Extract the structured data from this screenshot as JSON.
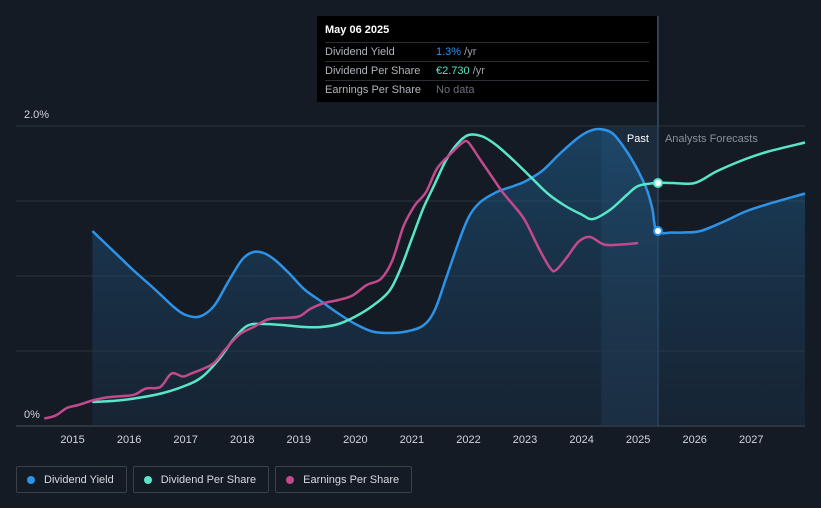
{
  "chart_data": {
    "type": "line",
    "x_ticks": [
      "2015",
      "2016",
      "2017",
      "2018",
      "2019",
      "2020",
      "2021",
      "2022",
      "2023",
      "2024",
      "2025",
      "2026",
      "2027"
    ],
    "y_ticks": [
      "0%",
      "2.0%"
    ],
    "ylim_percent": [
      0,
      2.0
    ],
    "xlim_years": [
      2014.0,
      2027.95
    ],
    "past_label": "Past",
    "forecast_label": "Analysts Forecasts",
    "forecast_start_year": 2025.35,
    "series": [
      {
        "name": "Dividend Yield",
        "color": "#2e93e6",
        "unit": "%",
        "filled": true,
        "points": [
          [
            2015.35,
            1.3
          ],
          [
            2015.6,
            1.21
          ],
          [
            2015.85,
            1.12
          ],
          [
            2016.1,
            1.03
          ],
          [
            2016.4,
            0.93
          ],
          [
            2016.6,
            0.86
          ],
          [
            2016.8,
            0.79
          ],
          [
            2017.0,
            0.74
          ],
          [
            2017.25,
            0.73
          ],
          [
            2017.5,
            0.8
          ],
          [
            2017.75,
            0.96
          ],
          [
            2018.0,
            1.11
          ],
          [
            2018.2,
            1.16
          ],
          [
            2018.4,
            1.15
          ],
          [
            2018.6,
            1.1
          ],
          [
            2018.85,
            1.01
          ],
          [
            2019.1,
            0.91
          ],
          [
            2019.4,
            0.83
          ],
          [
            2019.7,
            0.75
          ],
          [
            2020.0,
            0.68
          ],
          [
            2020.3,
            0.63
          ],
          [
            2020.6,
            0.62
          ],
          [
            2020.9,
            0.63
          ],
          [
            2021.2,
            0.67
          ],
          [
            2021.4,
            0.77
          ],
          [
            2021.6,
            0.98
          ],
          [
            2021.8,
            1.2
          ],
          [
            2022.0,
            1.39
          ],
          [
            2022.2,
            1.49
          ],
          [
            2022.5,
            1.56
          ],
          [
            2022.8,
            1.6
          ],
          [
            2023.0,
            1.63
          ],
          [
            2023.3,
            1.7
          ],
          [
            2023.6,
            1.81
          ],
          [
            2023.9,
            1.91
          ],
          [
            2024.1,
            1.96
          ],
          [
            2024.3,
            1.98
          ],
          [
            2024.55,
            1.95
          ],
          [
            2024.8,
            1.83
          ],
          [
            2025.0,
            1.7
          ],
          [
            2025.15,
            1.58
          ],
          [
            2025.25,
            1.45
          ],
          [
            2025.33,
            1.3
          ],
          [
            2025.6,
            1.29
          ],
          [
            2025.8,
            1.29
          ],
          [
            2026.1,
            1.3
          ],
          [
            2026.5,
            1.36
          ],
          [
            2026.9,
            1.43
          ],
          [
            2027.3,
            1.48
          ],
          [
            2027.95,
            1.55
          ]
        ]
      },
      {
        "name": "Dividend Per Share",
        "color": "#59e6c8",
        "unit": "€",
        "points": [
          [
            2015.35,
            0.16
          ],
          [
            2015.8,
            0.17
          ],
          [
            2016.2,
            0.19
          ],
          [
            2016.6,
            0.22
          ],
          [
            2017.0,
            0.27
          ],
          [
            2017.3,
            0.33
          ],
          [
            2017.6,
            0.45
          ],
          [
            2017.85,
            0.58
          ],
          [
            2018.1,
            0.67
          ],
          [
            2018.4,
            0.68
          ],
          [
            2018.8,
            0.67
          ],
          [
            2019.1,
            0.66
          ],
          [
            2019.4,
            0.66
          ],
          [
            2019.7,
            0.68
          ],
          [
            2020.0,
            0.73
          ],
          [
            2020.3,
            0.8
          ],
          [
            2020.6,
            0.9
          ],
          [
            2020.8,
            1.05
          ],
          [
            2021.0,
            1.25
          ],
          [
            2021.2,
            1.45
          ],
          [
            2021.4,
            1.61
          ],
          [
            2021.6,
            1.77
          ],
          [
            2021.8,
            1.88
          ],
          [
            2022.0,
            1.94
          ],
          [
            2022.25,
            1.93
          ],
          [
            2022.5,
            1.87
          ],
          [
            2022.8,
            1.77
          ],
          [
            2023.1,
            1.66
          ],
          [
            2023.4,
            1.55
          ],
          [
            2023.7,
            1.47
          ],
          [
            2024.0,
            1.41
          ],
          [
            2024.2,
            1.38
          ],
          [
            2024.5,
            1.44
          ],
          [
            2024.8,
            1.54
          ],
          [
            2025.0,
            1.6
          ],
          [
            2025.33,
            1.62
          ],
          [
            2025.6,
            1.62
          ],
          [
            2026.0,
            1.62
          ],
          [
            2026.4,
            1.7
          ],
          [
            2026.9,
            1.78
          ],
          [
            2027.3,
            1.83
          ],
          [
            2027.95,
            1.89
          ]
        ]
      },
      {
        "name": "Earnings Per Share",
        "color": "#c24a8c",
        "unit": "€",
        "points": [
          [
            2014.5,
            0.05
          ],
          [
            2014.7,
            0.07
          ],
          [
            2014.9,
            0.12
          ],
          [
            2015.1,
            0.14
          ],
          [
            2015.35,
            0.17
          ],
          [
            2015.6,
            0.19
          ],
          [
            2015.9,
            0.2
          ],
          [
            2016.1,
            0.21
          ],
          [
            2016.3,
            0.25
          ],
          [
            2016.55,
            0.26
          ],
          [
            2016.75,
            0.35
          ],
          [
            2016.95,
            0.33
          ],
          [
            2017.1,
            0.35
          ],
          [
            2017.3,
            0.38
          ],
          [
            2017.5,
            0.42
          ],
          [
            2017.7,
            0.51
          ],
          [
            2017.95,
            0.61
          ],
          [
            2018.2,
            0.66
          ],
          [
            2018.45,
            0.71
          ],
          [
            2018.7,
            0.72
          ],
          [
            2019.0,
            0.73
          ],
          [
            2019.2,
            0.78
          ],
          [
            2019.45,
            0.82
          ],
          [
            2019.7,
            0.84
          ],
          [
            2019.95,
            0.87
          ],
          [
            2020.2,
            0.94
          ],
          [
            2020.45,
            0.98
          ],
          [
            2020.65,
            1.1
          ],
          [
            2020.85,
            1.33
          ],
          [
            2021.05,
            1.47
          ],
          [
            2021.25,
            1.56
          ],
          [
            2021.45,
            1.72
          ],
          [
            2021.7,
            1.82
          ],
          [
            2021.9,
            1.89
          ],
          [
            2022.0,
            1.89
          ],
          [
            2022.2,
            1.78
          ],
          [
            2022.4,
            1.67
          ],
          [
            2022.6,
            1.56
          ],
          [
            2022.8,
            1.47
          ],
          [
            2023.0,
            1.37
          ],
          [
            2023.25,
            1.18
          ],
          [
            2023.45,
            1.05
          ],
          [
            2023.55,
            1.04
          ],
          [
            2023.75,
            1.13
          ],
          [
            2023.95,
            1.23
          ],
          [
            2024.15,
            1.26
          ],
          [
            2024.4,
            1.21
          ],
          [
            2024.7,
            1.21
          ],
          [
            2025.0,
            1.22
          ]
        ]
      }
    ]
  },
  "tooltip": {
    "date": "May 06 2025",
    "rows": [
      {
        "label": "Dividend Yield",
        "value": "1.3%",
        "suffix": " /yr"
      },
      {
        "label": "Dividend Per Share",
        "value": "€2.730",
        "suffix": " /yr"
      },
      {
        "label": "Earnings Per Share",
        "value": "No data",
        "suffix": ""
      }
    ]
  },
  "legend": {
    "items": [
      {
        "label": "Dividend Yield",
        "color": "#2e93e6"
      },
      {
        "label": "Dividend Per Share",
        "color": "#59e6c8"
      },
      {
        "label": "Earnings Per Share",
        "color": "#c24a8c"
      }
    ]
  }
}
